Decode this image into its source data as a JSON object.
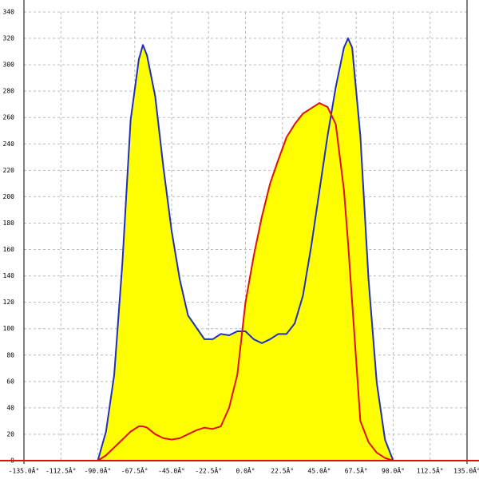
{
  "chart_data": {
    "type": "area",
    "x": [
      -90,
      -85,
      -80,
      -75,
      -70,
      -65,
      -62.5,
      -60,
      -55,
      -50,
      -45,
      -40,
      -35,
      -30,
      -25,
      -20,
      -15,
      -10,
      -5,
      0,
      5,
      10,
      15,
      20,
      25,
      30,
      35,
      40,
      45,
      50,
      55,
      60,
      62.5,
      65,
      70,
      75,
      80,
      85,
      90
    ],
    "series": [
      {
        "color": "#1f2fbf",
        "fill": "#ffff00",
        "values": [
          0,
          22,
          65,
          150,
          258,
          304,
          315,
          307,
          276,
          222,
          174,
          137,
          110,
          101,
          92,
          92,
          96,
          95,
          98,
          98,
          92,
          89,
          92,
          96,
          96,
          104,
          125,
          162,
          204,
          246,
          283,
          313,
          320,
          313,
          246,
          137,
          59,
          16,
          0
        ]
      },
      {
        "color": "#e01010",
        "fill": "#ffff00",
        "values": [
          0,
          4,
          10,
          16,
          22,
          26,
          26,
          25,
          20,
          17,
          16,
          17,
          20,
          23,
          25,
          24,
          26,
          40,
          65,
          120,
          155,
          185,
          210,
          228,
          245,
          255,
          263,
          267,
          271,
          268,
          255,
          205,
          165,
          120,
          30,
          14,
          6,
          2,
          0
        ]
      }
    ],
    "xlim": [
      -135,
      135
    ],
    "xticks": [
      {
        "value": -135,
        "label": "-135.0Â°"
      },
      {
        "value": -112.5,
        "label": "-112.5Â°"
      },
      {
        "value": -90,
        "label": "-90.0Â°"
      },
      {
        "value": -67.5,
        "label": "-67.5Â°"
      },
      {
        "value": -45,
        "label": "-45.0Â°"
      },
      {
        "value": -22.5,
        "label": "-22.5Â°"
      },
      {
        "value": 0,
        "label": "0.0Â°"
      },
      {
        "value": 22.5,
        "label": "22.5Â°"
      },
      {
        "value": 45,
        "label": "45.0Â°"
      },
      {
        "value": 67.5,
        "label": "67.5Â°"
      },
      {
        "value": 90,
        "label": "90.0Â°"
      },
      {
        "value": 112.5,
        "label": "112.5Â°"
      },
      {
        "value": 135,
        "label": "135.0Â°"
      }
    ],
    "ylim": [
      0,
      340
    ],
    "yticks": [
      0,
      20,
      40,
      60,
      80,
      100,
      120,
      140,
      160,
      180,
      200,
      220,
      240,
      260,
      280,
      300,
      320,
      340
    ],
    "grid": true
  }
}
